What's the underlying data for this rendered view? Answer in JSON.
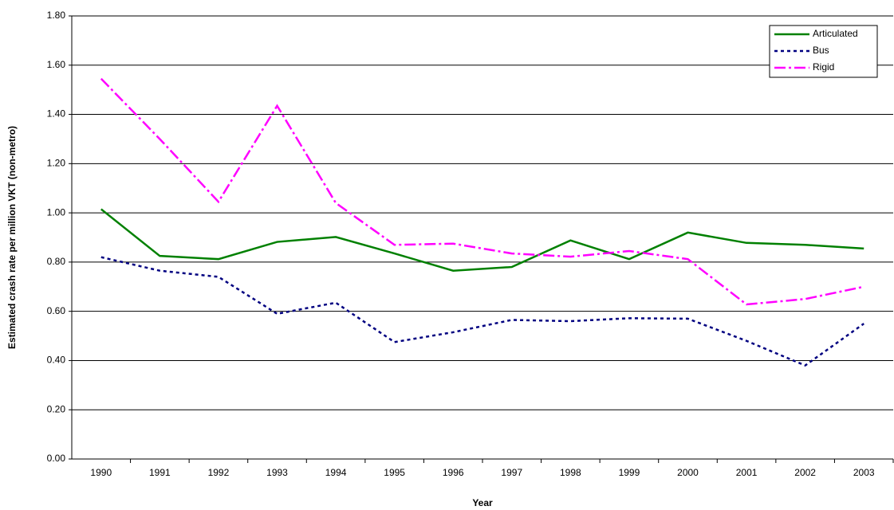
{
  "chart_data": {
    "type": "line",
    "x_label": "Year",
    "y_label": "Estimated crash rate per million VKT (non-metro)",
    "categories": [
      "1990",
      "1991",
      "1992",
      "1993",
      "1994",
      "1995",
      "1996",
      "1997",
      "1998",
      "1999",
      "2000",
      "2001",
      "2002",
      "2003"
    ],
    "series": [
      {
        "name": "Articulated",
        "color": "#008000",
        "dash": "solid",
        "values": [
          1.015,
          0.825,
          0.812,
          0.882,
          0.902,
          0.835,
          0.765,
          0.78,
          0.888,
          0.812,
          0.92,
          0.878,
          0.87,
          0.855
        ]
      },
      {
        "name": "Bus",
        "color": "#000080",
        "dash": "dotted",
        "values": [
          0.82,
          0.765,
          0.74,
          0.59,
          0.635,
          0.475,
          0.515,
          0.565,
          0.56,
          0.572,
          0.57,
          0.48,
          0.38,
          0.55
        ]
      },
      {
        "name": "Rigid",
        "color": "#ff00ff",
        "dash": "dashdot",
        "values": [
          1.545,
          1.3,
          1.045,
          1.435,
          1.04,
          0.87,
          0.875,
          0.835,
          0.822,
          0.845,
          0.812,
          0.628,
          0.65,
          0.7
        ]
      }
    ],
    "ylim": [
      0,
      1.8
    ],
    "yticks": [
      {
        "value": 0,
        "label": "0.00"
      },
      {
        "value": 0.2,
        "label": "0.20"
      },
      {
        "value": 0.4,
        "label": "0.40"
      },
      {
        "value": 0.6,
        "label": "0.60"
      },
      {
        "value": 0.8,
        "label": "0.80"
      },
      {
        "value": 1.0,
        "label": "1.00"
      },
      {
        "value": 1.2,
        "label": "1.20"
      },
      {
        "value": 1.4,
        "label": "1.40"
      },
      {
        "value": 1.6,
        "label": "1.60"
      },
      {
        "value": 1.8,
        "label": "1.80"
      }
    ],
    "grid": true,
    "legend": "top-right"
  }
}
